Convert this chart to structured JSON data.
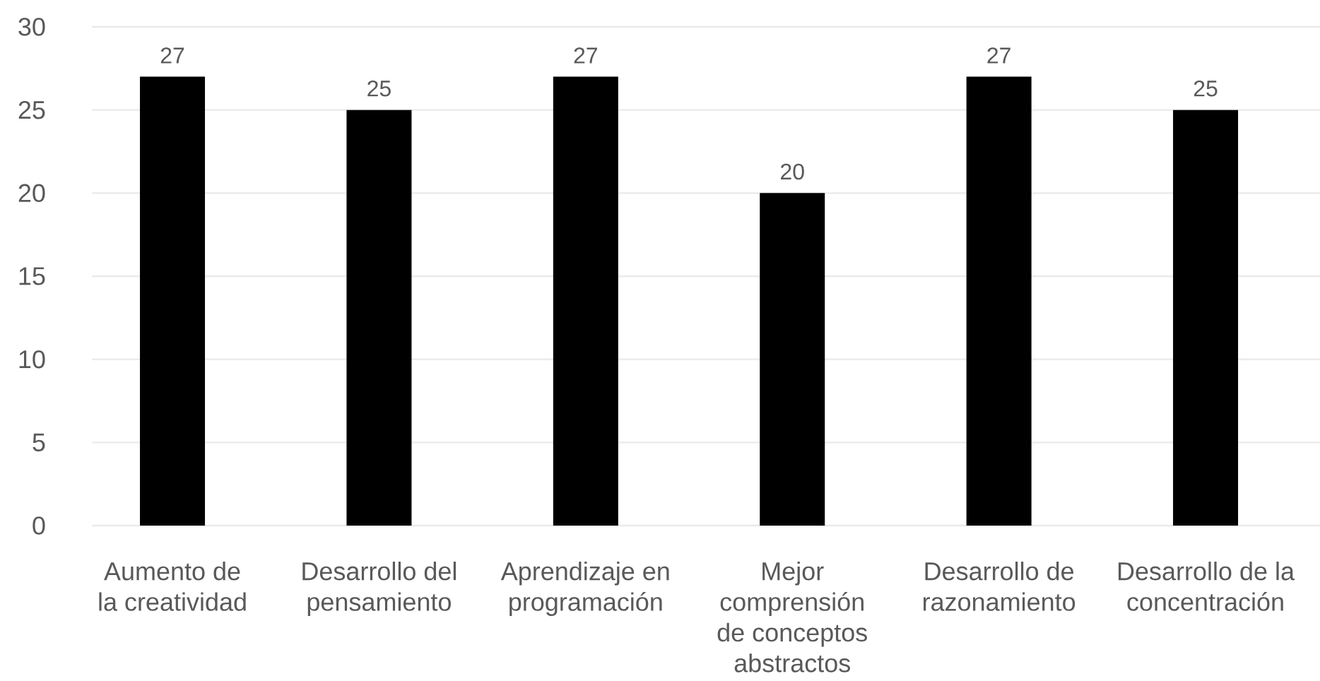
{
  "chart_data": {
    "type": "bar",
    "categories": [
      "Aumento de la creatividad",
      "Desarrollo del pensamiento",
      "Aprendizaje en programación",
      "Mejor comprensión de conceptos abstractos",
      "Desarrollo de razonamiento",
      "Desarrollo de la concentración"
    ],
    "values": [
      27,
      25,
      27,
      20,
      27,
      25
    ],
    "color": "#000000",
    "ylim": [
      0,
      30
    ],
    "yticks": [
      0,
      5,
      10,
      15,
      20,
      25,
      30
    ],
    "grid": "y",
    "data_labels": true
  }
}
